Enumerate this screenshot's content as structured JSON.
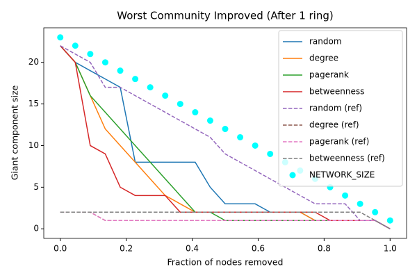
{
  "chart_data": {
    "type": "line",
    "title": "Worst Community Improved (After 1 ring)",
    "x_label": "Fraction of nodes removed",
    "y_label": "Giant component size",
    "x": [
      0,
      0.04545,
      0.09091,
      0.13636,
      0.18182,
      0.22727,
      0.27273,
      0.31818,
      0.36364,
      0.40909,
      0.45455,
      0.5,
      0.54545,
      0.59091,
      0.63636,
      0.68182,
      0.72727,
      0.77273,
      0.81818,
      0.86364,
      0.90909,
      0.95455,
      1
    ],
    "series": [
      {
        "name": "random",
        "color": "#1f77b4",
        "linestyle": "solid",
        "values": [
          22,
          20,
          19,
          18,
          17,
          8,
          8,
          8,
          8,
          8,
          5,
          3,
          3,
          3,
          2,
          2,
          2,
          1,
          1,
          1,
          1,
          1,
          0
        ]
      },
      {
        "name": "degree",
        "color": "#ff7f0e",
        "linestyle": "solid",
        "values": [
          22,
          20,
          16,
          12,
          10,
          8,
          6,
          4,
          3,
          2,
          2,
          2,
          2,
          2,
          2,
          2,
          2,
          1,
          1,
          1,
          1,
          1,
          0
        ]
      },
      {
        "name": "pagerank",
        "color": "#2ca02c",
        "linestyle": "solid",
        "values": [
          22,
          20,
          16,
          14,
          12,
          10,
          8,
          6,
          4,
          2,
          2,
          1,
          1,
          1,
          1,
          1,
          1,
          1,
          1,
          1,
          1,
          1,
          0
        ]
      },
      {
        "name": "betweenness",
        "color": "#d62728",
        "linestyle": "solid",
        "values": [
          22,
          20,
          10,
          9,
          5,
          4,
          4,
          4,
          2,
          2,
          2,
          2,
          2,
          2,
          2,
          2,
          2,
          2,
          1,
          1,
          1,
          1,
          0
        ]
      },
      {
        "name": "random (ref)",
        "color": "#9467bd",
        "linestyle": "dashed",
        "values": [
          22,
          21,
          20,
          17,
          17,
          16,
          15,
          14,
          13,
          12,
          11,
          9,
          8,
          7,
          6,
          5,
          4,
          3,
          3,
          3,
          1,
          1,
          0
        ]
      },
      {
        "name": "degree (ref)",
        "color": "#8c564b",
        "linestyle": "dashed",
        "values": [
          2,
          2,
          2,
          1,
          1,
          1,
          1,
          1,
          1,
          1,
          1,
          1,
          1,
          1,
          1,
          1,
          1,
          1,
          1,
          1,
          1,
          1,
          0
        ]
      },
      {
        "name": "pagerank (ref)",
        "color": "#e377c2",
        "linestyle": "dashed",
        "values": [
          2,
          2,
          2,
          1,
          1,
          1,
          1,
          1,
          1,
          1,
          1,
          1,
          1,
          1,
          1,
          1,
          1,
          1,
          1,
          1,
          1,
          1,
          0
        ]
      },
      {
        "name": "betweenness (ref)",
        "color": "#7f7f7f",
        "linestyle": "dashed",
        "values": [
          2,
          2,
          2,
          2,
          2,
          2,
          2,
          2,
          2,
          2,
          2,
          2,
          2,
          2,
          2,
          2,
          2,
          2,
          2,
          2,
          2,
          1,
          0
        ]
      },
      {
        "name": "NETWORK_SIZE",
        "color": "#00ffff",
        "linestyle": "none",
        "marker": "o",
        "values": [
          23,
          22,
          21,
          20,
          19,
          18,
          17,
          16,
          15,
          14,
          13,
          12,
          11,
          10,
          9,
          8,
          7,
          6,
          5,
          4,
          3,
          2,
          1
        ]
      }
    ],
    "xlim": [
      -0.05,
      1.05
    ],
    "ylim": [
      -1.15,
      24.15
    ],
    "xticks": [
      {
        "value": 0,
        "label": "0.0"
      },
      {
        "value": 0.2,
        "label": "0.2"
      },
      {
        "value": 0.4,
        "label": "0.4"
      },
      {
        "value": 0.6,
        "label": "0.6"
      },
      {
        "value": 0.8,
        "label": "0.8"
      },
      {
        "value": 1,
        "label": "1.0"
      }
    ],
    "yticks": [
      0,
      5,
      10,
      15,
      20
    ],
    "legend": "upper right"
  }
}
